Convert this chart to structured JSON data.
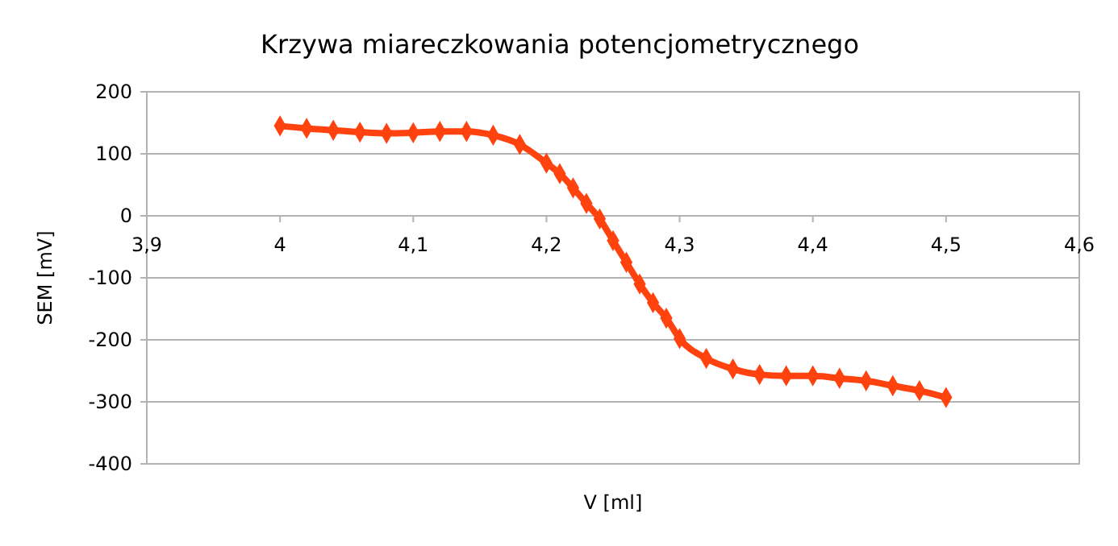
{
  "chart_data": {
    "type": "line",
    "title": "Krzywa miareczkowania potencjometrycznego",
    "xlabel": "V [ml]",
    "ylabel": "SEM [mV]",
    "xlim": [
      3.9,
      4.6
    ],
    "xticks": [
      {
        "value": 3.9,
        "label": "3,9"
      },
      {
        "value": 4,
        "label": "4"
      },
      {
        "value": 4.1,
        "label": "4,1"
      },
      {
        "value": 4.2,
        "label": "4,2"
      },
      {
        "value": 4.3,
        "label": "4,3"
      },
      {
        "value": 4.4,
        "label": "4,4"
      },
      {
        "value": 4.5,
        "label": "4,5"
      },
      {
        "value": 4.6,
        "label": "4,6"
      }
    ],
    "ylim": [
      -400,
      200
    ],
    "yticks": [
      -400,
      -300,
      -200,
      -100,
      0,
      100,
      200
    ],
    "grid": "y",
    "marker": "diamond",
    "line_style": "solid",
    "series": [
      {
        "color": "#ff420e",
        "x": [
          4.0,
          4.02,
          4.04,
          4.06,
          4.08,
          4.1,
          4.12,
          4.14,
          4.16,
          4.18,
          4.2,
          4.21,
          4.22,
          4.23,
          4.24,
          4.25,
          4.26,
          4.27,
          4.28,
          4.29,
          4.3,
          4.32,
          4.34,
          4.36,
          4.38,
          4.4,
          4.42,
          4.44,
          4.46,
          4.48,
          4.5
        ],
        "values": [
          145,
          141,
          138,
          135,
          133,
          134,
          136,
          136,
          130,
          115,
          85,
          68,
          45,
          20,
          -5,
          -40,
          -75,
          -110,
          -140,
          -165,
          -198,
          -230,
          -247,
          -256,
          -258,
          -258,
          -262,
          -266,
          -274,
          -282,
          -293
        ]
      }
    ]
  }
}
